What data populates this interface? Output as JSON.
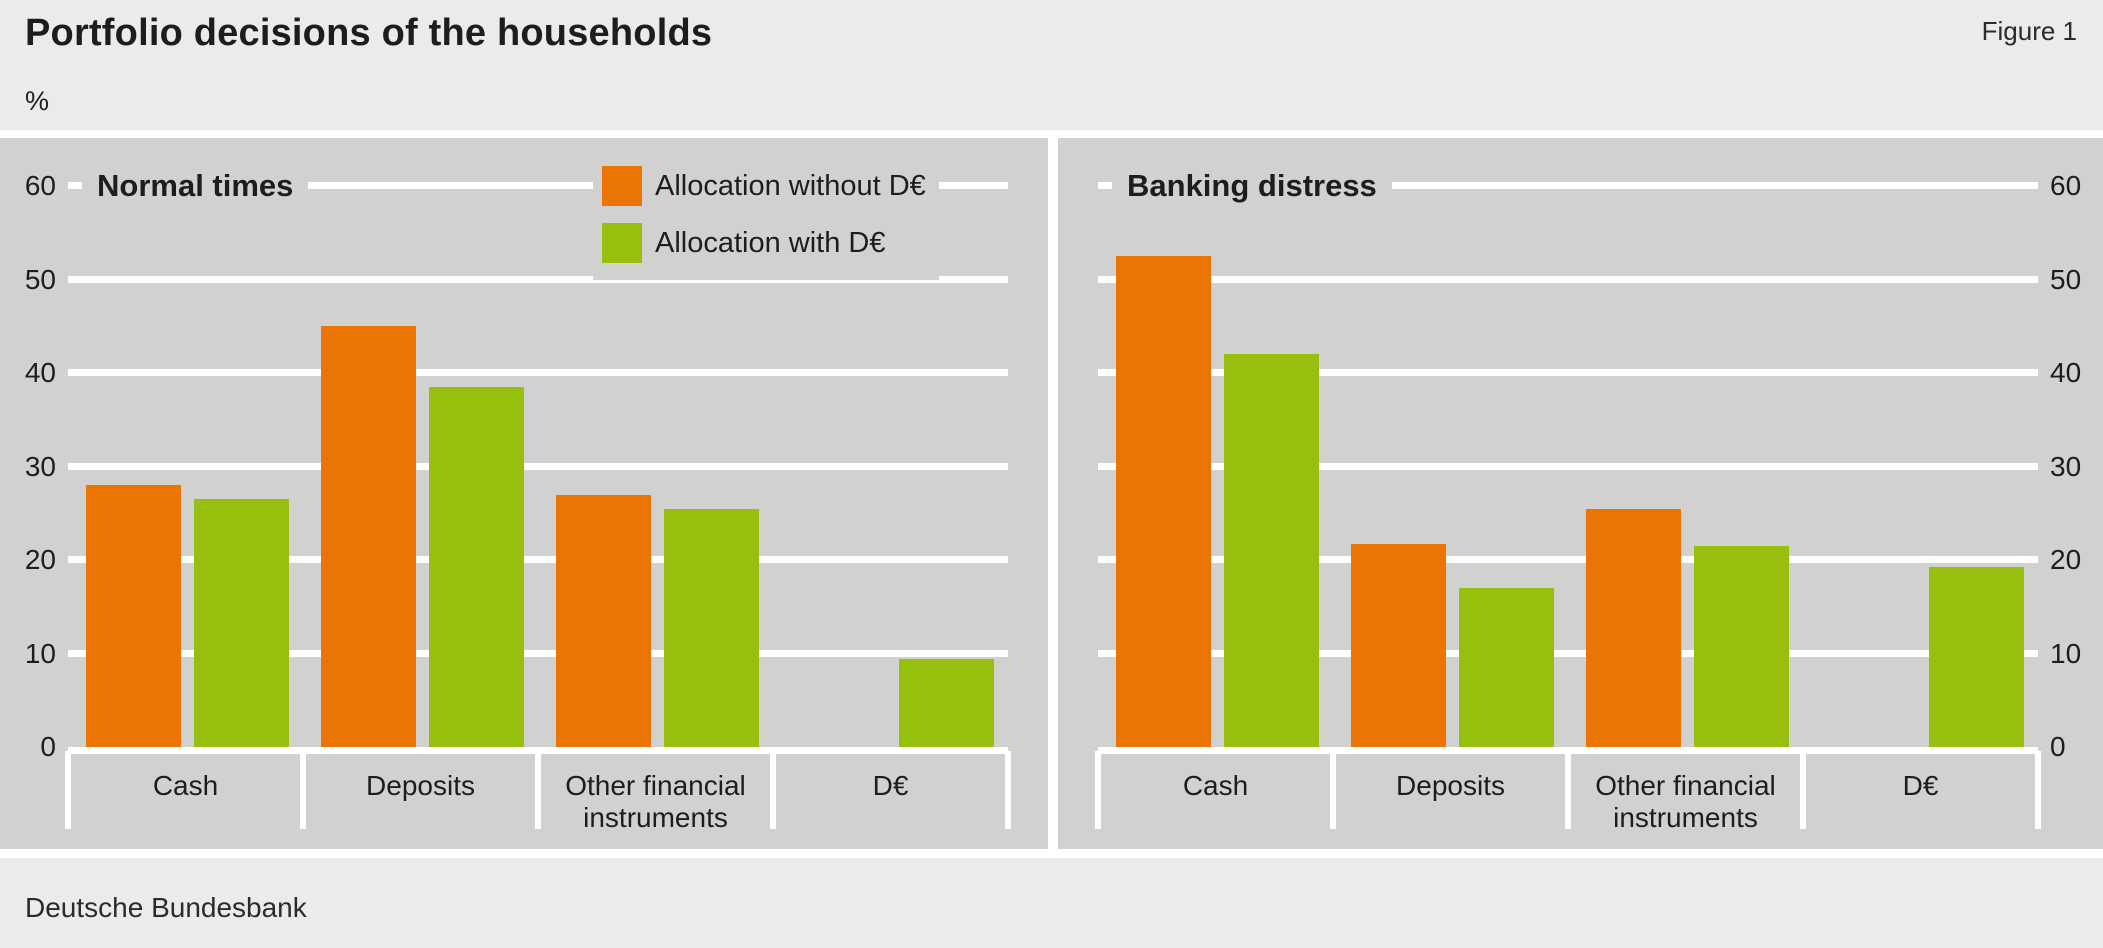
{
  "header": {
    "title": "Portfolio decisions of the households",
    "figure_label": "Figure 1",
    "unit": "%"
  },
  "footer": {
    "source": "Deutsche Bundesbank"
  },
  "colors": {
    "orange": "#ec7404",
    "green": "#97bf0d",
    "panel_bg": "#d1d1d0",
    "page_bg": "#ebebeb",
    "gridline": "#ffffff",
    "text": "#1d1d1b"
  },
  "chart_data": [
    {
      "type": "bar",
      "title": "Normal times",
      "categories": [
        "Cash",
        "Deposits",
        "Other financial\ninstruments",
        "D€"
      ],
      "series": [
        {
          "name": "Allocation without D€",
          "color": "#ec7404",
          "values": [
            28,
            45,
            27,
            null
          ]
        },
        {
          "name": "Allocation with D€",
          "color": "#97bf0d",
          "values": [
            26.5,
            38.5,
            25.5,
            9.4
          ]
        }
      ],
      "ylabel": "%",
      "ylim": [
        0,
        60
      ],
      "yticks": [
        0,
        10,
        20,
        30,
        40,
        50,
        60
      ],
      "axis_side": "left",
      "grid": true,
      "legend_position": "top-right-inside",
      "show_legend": true
    },
    {
      "type": "bar",
      "title": "Banking distress",
      "categories": [
        "Cash",
        "Deposits",
        "Other financial\ninstruments",
        "D€"
      ],
      "series": [
        {
          "name": "Allocation without D€",
          "color": "#ec7404",
          "values": [
            52.5,
            21.7,
            25.5,
            null
          ]
        },
        {
          "name": "Allocation with D€",
          "color": "#97bf0d",
          "values": [
            42,
            17,
            21.5,
            19.3
          ]
        }
      ],
      "ylabel": "%",
      "ylim": [
        0,
        60
      ],
      "yticks": [
        0,
        10,
        20,
        30,
        40,
        50,
        60
      ],
      "axis_side": "right",
      "grid": true,
      "show_legend": false
    }
  ]
}
